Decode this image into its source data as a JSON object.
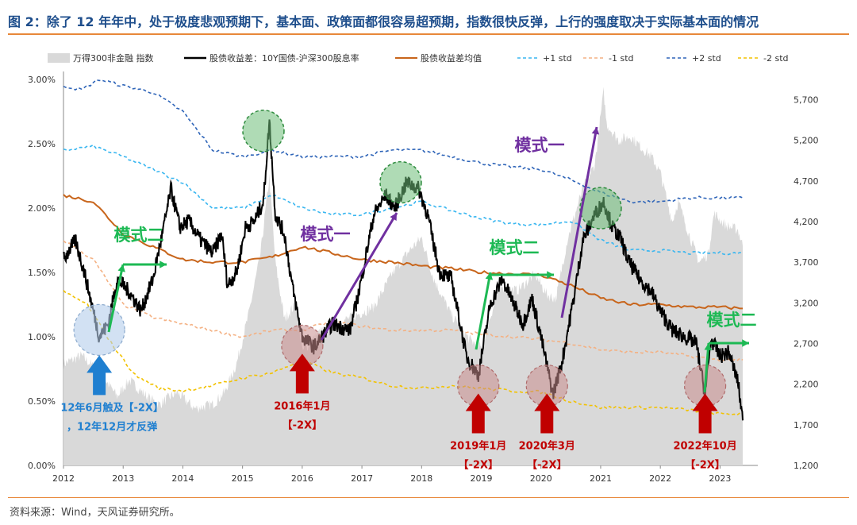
{
  "title": "图 2：除了 12 年年中，处于极度悲观预期下，基本面、政策面都很容易超预期，指数很快反弹，上行的强度取决于实际基本面的情况",
  "source": "资料来源：Wind，天风证券研究所。",
  "colors": {
    "index_area": "#d9d9d9",
    "spread": "#000000",
    "mean": "#c8651b",
    "plus1": "#38b6f0",
    "minus1": "#f4b183",
    "plus2": "#2e64b8",
    "minus2": "#f2c200",
    "green": "#1db954",
    "purple": "#7030a0",
    "red": "#c00000",
    "blue": "#1f7fd0",
    "title": "#1e4e8c",
    "rule": "#e8883a"
  },
  "chart_data": {
    "type": "line",
    "legend": {
      "placement": "top",
      "entries": [
        {
          "label": "万得300非金融 指数",
          "key": "index"
        },
        {
          "label": "股债收益差：10Y国债-沪深300股息率",
          "key": "spread"
        },
        {
          "label": "股债收益差均值",
          "key": "mean"
        },
        {
          "label": "+1 std",
          "key": "plus1"
        },
        {
          "label": "-1 std",
          "key": "minus1"
        },
        {
          "label": "+2 std",
          "key": "plus2"
        },
        {
          "label": "-2 std",
          "key": "minus2"
        }
      ]
    },
    "x_axis": {
      "range": [
        2012.0,
        2023.5
      ],
      "ticks": [
        "2012",
        "2013",
        "2014",
        "2015",
        "2016",
        "2017",
        "2018",
        "2019",
        "2020",
        "2021",
        "2022",
        "2023"
      ]
    },
    "y_left": {
      "range": [
        0,
        3.0
      ],
      "ticks": [
        "0.00%",
        "0.50%",
        "1.00%",
        "1.50%",
        "2.00%",
        "2.50%",
        "3.00%"
      ]
    },
    "y_right": {
      "range": [
        1200,
        5950
      ],
      "ticks": [
        "1,200",
        "1,700",
        "2,200",
        "2,700",
        "3,200",
        "3,700",
        "4,200",
        "4,700",
        "5,200",
        "5,700"
      ]
    },
    "series": [
      {
        "name": "万得300非金融 指数",
        "axis": "right",
        "points": [
          [
            2012.0,
            2450
          ],
          [
            2012.3,
            2550
          ],
          [
            2012.6,
            2350
          ],
          [
            2012.9,
            2050
          ],
          [
            2013.1,
            2250
          ],
          [
            2013.4,
            2050
          ],
          [
            2013.6,
            1950
          ],
          [
            2013.9,
            2100
          ],
          [
            2014.2,
            1900
          ],
          [
            2014.5,
            1950
          ],
          [
            2014.7,
            2100
          ],
          [
            2014.9,
            2450
          ],
          [
            2015.1,
            3050
          ],
          [
            2015.3,
            3800
          ],
          [
            2015.45,
            4750
          ],
          [
            2015.55,
            3700
          ],
          [
            2015.7,
            3000
          ],
          [
            2015.9,
            3200
          ],
          [
            2016.0,
            2600
          ],
          [
            2016.3,
            2850
          ],
          [
            2016.6,
            2950
          ],
          [
            2016.9,
            3050
          ],
          [
            2017.2,
            3150
          ],
          [
            2017.5,
            3550
          ],
          [
            2017.8,
            3850
          ],
          [
            2018.0,
            4000
          ],
          [
            2018.2,
            3500
          ],
          [
            2018.5,
            3050
          ],
          [
            2018.8,
            2750
          ],
          [
            2019.0,
            2650
          ],
          [
            2019.3,
            3400
          ],
          [
            2019.6,
            3350
          ],
          [
            2019.9,
            3550
          ],
          [
            2020.1,
            3300
          ],
          [
            2020.25,
            3250
          ],
          [
            2020.45,
            4000
          ],
          [
            2020.7,
            4600
          ],
          [
            2020.9,
            4900
          ],
          [
            2021.05,
            5800
          ],
          [
            2021.1,
            5400
          ],
          [
            2021.3,
            5200
          ],
          [
            2021.5,
            5250
          ],
          [
            2021.7,
            5100
          ],
          [
            2021.85,
            5000
          ],
          [
            2022.0,
            4800
          ],
          [
            2022.2,
            4200
          ],
          [
            2022.3,
            4450
          ],
          [
            2022.5,
            4000
          ],
          [
            2022.65,
            3700
          ],
          [
            2022.8,
            3800
          ],
          [
            2022.9,
            4300
          ],
          [
            2023.1,
            4150
          ],
          [
            2023.3,
            4100
          ],
          [
            2023.38,
            3900
          ]
        ]
      },
      {
        "name": "股债收益差：10Y国债-沪深300股息率",
        "axis": "left",
        "points": [
          [
            2012.0,
            1.6
          ],
          [
            2012.2,
            1.75
          ],
          [
            2012.35,
            1.5
          ],
          [
            2012.5,
            1.2
          ],
          [
            2012.6,
            1.0
          ],
          [
            2012.75,
            1.1
          ],
          [
            2012.9,
            1.45
          ],
          [
            2013.1,
            1.35
          ],
          [
            2013.3,
            1.2
          ],
          [
            2013.5,
            1.45
          ],
          [
            2013.7,
            1.9
          ],
          [
            2013.8,
            2.15
          ],
          [
            2013.95,
            1.85
          ],
          [
            2014.1,
            1.9
          ],
          [
            2014.3,
            1.75
          ],
          [
            2014.5,
            1.65
          ],
          [
            2014.65,
            1.8
          ],
          [
            2014.75,
            1.4
          ],
          [
            2014.9,
            1.5
          ],
          [
            2015.05,
            1.85
          ],
          [
            2015.2,
            1.9
          ],
          [
            2015.35,
            2.05
          ],
          [
            2015.45,
            2.68
          ],
          [
            2015.55,
            1.95
          ],
          [
            2015.7,
            1.8
          ],
          [
            2015.85,
            1.35
          ],
          [
            2016.0,
            1.0
          ],
          [
            2016.2,
            0.92
          ],
          [
            2016.5,
            1.1
          ],
          [
            2016.8,
            1.05
          ],
          [
            2016.95,
            1.35
          ],
          [
            2017.2,
            1.95
          ],
          [
            2017.4,
            2.1
          ],
          [
            2017.55,
            2.0
          ],
          [
            2017.75,
            2.2
          ],
          [
            2017.95,
            2.15
          ],
          [
            2018.1,
            1.95
          ],
          [
            2018.3,
            1.5
          ],
          [
            2018.5,
            1.45
          ],
          [
            2018.75,
            0.85
          ],
          [
            2018.95,
            0.7
          ],
          [
            2019.15,
            1.25
          ],
          [
            2019.35,
            1.45
          ],
          [
            2019.5,
            1.3
          ],
          [
            2019.7,
            1.1
          ],
          [
            2019.85,
            1.3
          ],
          [
            2020.0,
            1.0
          ],
          [
            2020.2,
            0.55
          ],
          [
            2020.35,
            0.8
          ],
          [
            2020.55,
            1.3
          ],
          [
            2020.7,
            1.75
          ],
          [
            2020.9,
            1.95
          ],
          [
            2021.05,
            2.05
          ],
          [
            2021.2,
            1.85
          ],
          [
            2021.35,
            1.75
          ],
          [
            2021.45,
            1.6
          ],
          [
            2021.65,
            1.45
          ],
          [
            2021.85,
            1.35
          ],
          [
            2022.0,
            1.2
          ],
          [
            2022.2,
            1.05
          ],
          [
            2022.4,
            1.0
          ],
          [
            2022.6,
            0.95
          ],
          [
            2022.75,
            0.55
          ],
          [
            2022.85,
            0.98
          ],
          [
            2023.0,
            0.85
          ],
          [
            2023.15,
            0.88
          ],
          [
            2023.3,
            0.65
          ],
          [
            2023.38,
            0.35
          ]
        ]
      },
      {
        "name": "股债收益差均值",
        "axis": "left",
        "points": [
          [
            2012.0,
            2.1
          ],
          [
            2012.5,
            2.05
          ],
          [
            2013.0,
            1.8
          ],
          [
            2013.5,
            1.7
          ],
          [
            2014.0,
            1.6
          ],
          [
            2014.5,
            1.58
          ],
          [
            2015.0,
            1.58
          ],
          [
            2015.5,
            1.62
          ],
          [
            2016.0,
            1.7
          ],
          [
            2016.5,
            1.65
          ],
          [
            2017.0,
            1.6
          ],
          [
            2017.5,
            1.58
          ],
          [
            2018.0,
            1.55
          ],
          [
            2018.5,
            1.53
          ],
          [
            2019.0,
            1.5
          ],
          [
            2019.5,
            1.49
          ],
          [
            2020.0,
            1.48
          ],
          [
            2020.5,
            1.4
          ],
          [
            2021.0,
            1.3
          ],
          [
            2021.5,
            1.25
          ],
          [
            2022.0,
            1.25
          ],
          [
            2022.5,
            1.23
          ],
          [
            2023.0,
            1.23
          ],
          [
            2023.38,
            1.22
          ]
        ]
      },
      {
        "name": "+1 std",
        "axis": "left",
        "points": [
          [
            2012.0,
            2.45
          ],
          [
            2012.5,
            2.48
          ],
          [
            2013.0,
            2.4
          ],
          [
            2013.5,
            2.3
          ],
          [
            2014.0,
            2.2
          ],
          [
            2014.5,
            2.0
          ],
          [
            2015.0,
            2.0
          ],
          [
            2015.5,
            2.1
          ],
          [
            2016.0,
            2.0
          ],
          [
            2016.5,
            1.95
          ],
          [
            2017.0,
            1.95
          ],
          [
            2017.5,
            2.0
          ],
          [
            2018.0,
            2.05
          ],
          [
            2018.5,
            1.98
          ],
          [
            2019.0,
            1.92
          ],
          [
            2019.5,
            1.88
          ],
          [
            2020.0,
            1.87
          ],
          [
            2020.5,
            1.9
          ],
          [
            2021.0,
            1.75
          ],
          [
            2021.5,
            1.67
          ],
          [
            2022.0,
            1.67
          ],
          [
            2022.5,
            1.65
          ],
          [
            2023.0,
            1.65
          ],
          [
            2023.38,
            1.65
          ]
        ]
      },
      {
        "name": "-1 std",
        "axis": "left",
        "points": [
          [
            2012.0,
            1.75
          ],
          [
            2012.5,
            1.6
          ],
          [
            2013.0,
            1.25
          ],
          [
            2013.5,
            1.15
          ],
          [
            2014.0,
            1.1
          ],
          [
            2014.5,
            1.05
          ],
          [
            2015.0,
            1.0
          ],
          [
            2015.5,
            1.05
          ],
          [
            2016.0,
            1.05
          ],
          [
            2016.5,
            1.12
          ],
          [
            2017.0,
            1.08
          ],
          [
            2017.5,
            1.05
          ],
          [
            2018.0,
            1.05
          ],
          [
            2018.5,
            1.05
          ],
          [
            2019.0,
            1.02
          ],
          [
            2019.5,
            1.0
          ],
          [
            2020.0,
            0.98
          ],
          [
            2020.5,
            0.95
          ],
          [
            2021.0,
            0.9
          ],
          [
            2021.5,
            0.88
          ],
          [
            2022.0,
            0.88
          ],
          [
            2022.5,
            0.85
          ],
          [
            2023.0,
            0.82
          ],
          [
            2023.38,
            0.82
          ]
        ]
      },
      {
        "name": "+2 std",
        "axis": "left",
        "points": [
          [
            2012.0,
            2.95
          ],
          [
            2012.3,
            2.92
          ],
          [
            2012.6,
            3.0
          ],
          [
            2013.0,
            2.95
          ],
          [
            2013.5,
            2.9
          ],
          [
            2014.0,
            2.75
          ],
          [
            2014.5,
            2.45
          ],
          [
            2015.0,
            2.4
          ],
          [
            2015.5,
            2.45
          ],
          [
            2016.0,
            2.4
          ],
          [
            2016.5,
            2.4
          ],
          [
            2017.0,
            2.4
          ],
          [
            2017.5,
            2.45
          ],
          [
            2018.0,
            2.45
          ],
          [
            2018.5,
            2.4
          ],
          [
            2019.0,
            2.35
          ],
          [
            2019.5,
            2.32
          ],
          [
            2020.0,
            2.3
          ],
          [
            2020.5,
            2.22
          ],
          [
            2021.0,
            2.12
          ],
          [
            2021.5,
            2.05
          ],
          [
            2022.0,
            2.05
          ],
          [
            2022.5,
            2.08
          ],
          [
            2023.0,
            2.08
          ],
          [
            2023.38,
            2.08
          ]
        ]
      },
      {
        "name": "-2 std",
        "axis": "left",
        "points": [
          [
            2012.0,
            1.35
          ],
          [
            2012.4,
            1.25
          ],
          [
            2012.8,
            0.95
          ],
          [
            2013.2,
            0.7
          ],
          [
            2013.6,
            0.6
          ],
          [
            2014.0,
            0.58
          ],
          [
            2014.5,
            0.62
          ],
          [
            2015.0,
            0.68
          ],
          [
            2015.5,
            0.72
          ],
          [
            2016.0,
            0.82
          ],
          [
            2016.5,
            0.72
          ],
          [
            2017.0,
            0.68
          ],
          [
            2017.5,
            0.62
          ],
          [
            2018.0,
            0.6
          ],
          [
            2018.5,
            0.62
          ],
          [
            2019.0,
            0.6
          ],
          [
            2019.5,
            0.58
          ],
          [
            2020.0,
            0.57
          ],
          [
            2020.5,
            0.5
          ],
          [
            2021.0,
            0.45
          ],
          [
            2021.5,
            0.45
          ],
          [
            2022.0,
            0.45
          ],
          [
            2022.5,
            0.43
          ],
          [
            2023.0,
            0.4
          ],
          [
            2023.38,
            0.4
          ]
        ]
      }
    ],
    "annotations": {
      "mode2_labels": [
        "模式二",
        "模式二",
        "模式二"
      ],
      "mode1_labels": [
        "模式一",
        "模式一"
      ],
      "events": [
        {
          "label": "12年6月触及【-2X】",
          "label2": "，12年12月才反弹",
          "x": 2012.6,
          "y": 0.93,
          "color": "blue"
        },
        {
          "label": "2016年1月",
          "label2": "【-2X】",
          "x": 2016.0,
          "y": 0.93,
          "color": "red"
        },
        {
          "label": "2019年1月",
          "label2": "【-2X】",
          "x": 2018.95,
          "y": 0.62,
          "color": "red"
        },
        {
          "label": "2020年3月",
          "label2": "【-2X】",
          "x": 2020.1,
          "y": 0.62,
          "color": "red"
        },
        {
          "label": "2022年10月",
          "label2": "【-2X】",
          "x": 2022.75,
          "y": 0.62,
          "color": "red"
        }
      ],
      "peaks": [
        {
          "x": 2015.35,
          "y": 2.6
        },
        {
          "x": 2017.65,
          "y": 2.2
        },
        {
          "x": 2021.0,
          "y": 2.0
        }
      ]
    }
  }
}
